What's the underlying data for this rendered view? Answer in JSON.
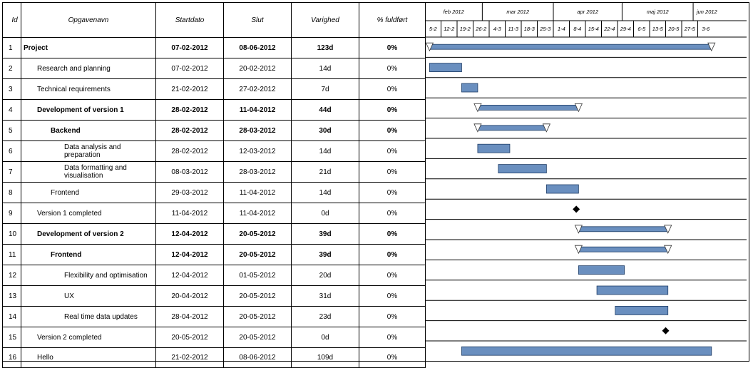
{
  "columns": {
    "id": "Id",
    "name": "Opgavenavn",
    "start": "Startdato",
    "end": "Slut",
    "duration": "Varighed",
    "complete": "% fuldført"
  },
  "timeline": {
    "months": [
      "feb 2012",
      "mar 2012",
      "apr 2012",
      "maj 2012",
      "jun 2012"
    ],
    "weeks": [
      "5-2",
      "12-2",
      "19-2",
      "26-2",
      "4-3",
      "11-3",
      "18-3",
      "25-3",
      "1-4",
      "8-4",
      "15-4",
      "22-4",
      "29-4",
      "6-5",
      "13-5",
      "20-5",
      "27-5",
      "3-6"
    ]
  },
  "tasks": [
    {
      "id": "1",
      "name": "Project",
      "start": "07-02-2012",
      "end": "08-06-2012",
      "duration": "123d",
      "complete": "0%",
      "level": 0,
      "bold": true,
      "type": "summary"
    },
    {
      "id": "2",
      "name": "Research and planning",
      "start": "07-02-2012",
      "end": "20-02-2012",
      "duration": "14d",
      "complete": "0%",
      "level": 1,
      "bold": false,
      "type": "task"
    },
    {
      "id": "3",
      "name": "Technical requirements",
      "start": "21-02-2012",
      "end": "27-02-2012",
      "duration": "7d",
      "complete": "0%",
      "level": 1,
      "bold": false,
      "type": "task"
    },
    {
      "id": "4",
      "name": "Development of version 1",
      "start": "28-02-2012",
      "end": "11-04-2012",
      "duration": "44d",
      "complete": "0%",
      "level": 1,
      "bold": true,
      "type": "summary"
    },
    {
      "id": "5",
      "name": "Backend",
      "start": "28-02-2012",
      "end": "28-03-2012",
      "duration": "30d",
      "complete": "0%",
      "level": 2,
      "bold": true,
      "type": "summary"
    },
    {
      "id": "6",
      "name": "Data analysis and preparation",
      "start": "28-02-2012",
      "end": "12-03-2012",
      "duration": "14d",
      "complete": "0%",
      "level": 3,
      "bold": false,
      "type": "task"
    },
    {
      "id": "7",
      "name": "Data formatting and visualisation",
      "start": "08-03-2012",
      "end": "28-03-2012",
      "duration": "21d",
      "complete": "0%",
      "level": 3,
      "bold": false,
      "type": "task"
    },
    {
      "id": "8",
      "name": "Frontend",
      "start": "29-03-2012",
      "end": "11-04-2012",
      "duration": "14d",
      "complete": "0%",
      "level": 2,
      "bold": false,
      "type": "task"
    },
    {
      "id": "9",
      "name": "Version 1 completed",
      "start": "11-04-2012",
      "end": "11-04-2012",
      "duration": "0d",
      "complete": "0%",
      "level": 1,
      "bold": false,
      "type": "milestone"
    },
    {
      "id": "10",
      "name": "Development of version 2",
      "start": "12-04-2012",
      "end": "20-05-2012",
      "duration": "39d",
      "complete": "0%",
      "level": 1,
      "bold": true,
      "type": "summary"
    },
    {
      "id": "11",
      "name": "Frontend",
      "start": "12-04-2012",
      "end": "20-05-2012",
      "duration": "39d",
      "complete": "0%",
      "level": 2,
      "bold": true,
      "type": "summary"
    },
    {
      "id": "12",
      "name": "Flexibility and optimisation",
      "start": "12-04-2012",
      "end": "01-05-2012",
      "duration": "20d",
      "complete": "0%",
      "level": 3,
      "bold": false,
      "type": "task"
    },
    {
      "id": "13",
      "name": "UX",
      "start": "20-04-2012",
      "end": "20-05-2012",
      "duration": "31d",
      "complete": "0%",
      "level": 3,
      "bold": false,
      "type": "task"
    },
    {
      "id": "14",
      "name": "Real time data updates",
      "start": "28-04-2012",
      "end": "20-05-2012",
      "duration": "23d",
      "complete": "0%",
      "level": 3,
      "bold": false,
      "type": "task"
    },
    {
      "id": "15",
      "name": "Version 2 completed",
      "start": "20-05-2012",
      "end": "20-05-2012",
      "duration": "0d",
      "complete": "0%",
      "level": 1,
      "bold": false,
      "type": "milestone"
    },
    {
      "id": "16",
      "name": "Hello",
      "start": "21-02-2012",
      "end": "08-06-2012",
      "duration": "109d",
      "complete": "0%",
      "level": 1,
      "bold": false,
      "type": "task"
    }
  ],
  "colors": {
    "bar_fill": "#6a8fbf",
    "bar_stroke": "#1f3d66",
    "summary_fill": "#6a8fbf",
    "milestone": "#000000",
    "triangle_fill": "#ffffff"
  }
}
